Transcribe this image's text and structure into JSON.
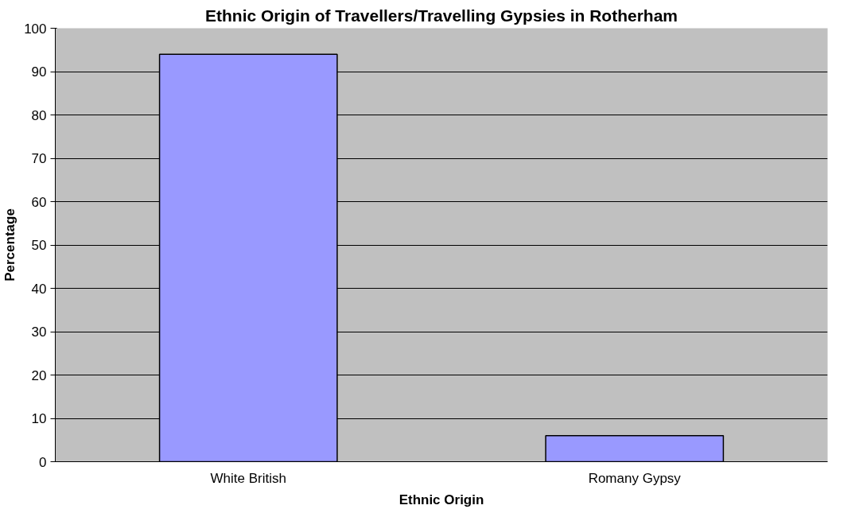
{
  "chart_data": {
    "type": "bar",
    "title": "Ethnic Origin of Travellers/Travelling Gypsies in Rotherham",
    "xlabel": "Ethnic Origin",
    "ylabel": "Percentage",
    "categories": [
      "White British",
      "Romany Gypsy"
    ],
    "values": [
      94,
      6
    ],
    "color": "#9999ff",
    "ylim": [
      0,
      100
    ],
    "yticks": [
      0,
      10,
      20,
      30,
      40,
      50,
      60,
      70,
      80,
      90,
      100
    ],
    "grid": "y"
  }
}
